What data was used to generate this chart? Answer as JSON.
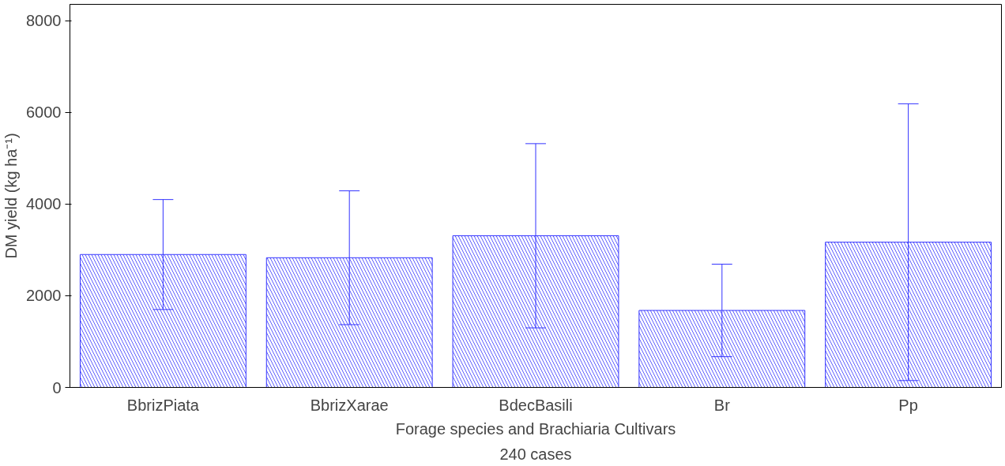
{
  "chart_data": {
    "type": "bar",
    "xlabel": "Forage species and Brachiaria Cultivars",
    "ylabel": "DM yield (kg ha⁻¹)",
    "categories": [
      "BbrizPiata",
      "BbrizXarae",
      "BdecBasili",
      "Br",
      "Pp"
    ],
    "values": [
      2900,
      2830,
      3310,
      1680,
      3170
    ],
    "errors": [
      1200,
      1460,
      2010,
      1010,
      3020
    ],
    "color": "#3333ff",
    "ylim": [
      0,
      8360
    ],
    "yticks": [
      0,
      2000,
      4000,
      6000,
      8000
    ],
    "grid": false,
    "annotations": [
      "240 cases"
    ]
  }
}
